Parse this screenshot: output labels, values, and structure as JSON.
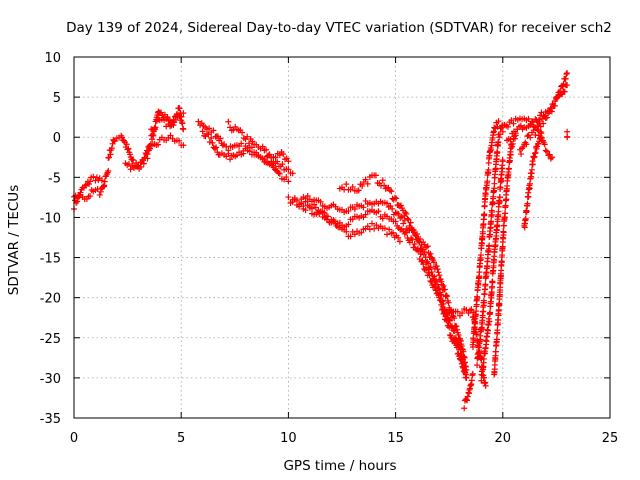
{
  "chart_data": {
    "type": "scatter",
    "title": "Day 139 of 2024, Sidereal Day-to-day VTEC variation (SDTVAR) for receiver sch2",
    "xlabel": "GPS time / hours",
    "ylabel": "SDTVAR / TECUs",
    "xlim": [
      0,
      25
    ],
    "ylim": [
      -35,
      10
    ],
    "xticks": [
      0,
      5,
      10,
      15,
      20,
      25
    ],
    "yticks": [
      10,
      5,
      0,
      -5,
      -10,
      -15,
      -20,
      -25,
      -30,
      -35
    ],
    "xtick_labels": [
      "0",
      "5",
      "10",
      "15",
      "20",
      "25"
    ],
    "ytick_labels": [
      "10",
      "5",
      "0",
      "-5",
      "-10",
      "-15",
      "-20",
      "-25",
      "-30",
      "-35"
    ],
    "grid": true,
    "marker": "+",
    "color": "#ff0000",
    "series": [
      {
        "name": "SDTVAR",
        "traces": [
          [
            [
              0.0,
              -8.5
            ],
            [
              0.2,
              -7.5
            ],
            [
              0.4,
              -6.5
            ],
            [
              0.6,
              -6.0
            ],
            [
              0.8,
              -5.2
            ],
            [
              1.0,
              -5.0
            ],
            [
              1.2,
              -5.5
            ],
            [
              1.4,
              -5.8
            ],
            [
              1.6,
              -4.2
            ]
          ],
          [
            [
              0.0,
              -7.8
            ],
            [
              0.3,
              -7.2
            ],
            [
              0.6,
              -7.5
            ],
            [
              0.9,
              -6.8
            ],
            [
              1.2,
              -6.8
            ],
            [
              1.4,
              -6.0
            ]
          ],
          [
            [
              1.6,
              -2.5
            ],
            [
              1.9,
              -0.2
            ],
            [
              2.2,
              0.3
            ],
            [
              2.5,
              -1.5
            ],
            [
              2.8,
              -3.5
            ],
            [
              3.1,
              -3.2
            ],
            [
              3.4,
              -2.0
            ],
            [
              3.7,
              0.5
            ],
            [
              4.0,
              3.5
            ],
            [
              4.3,
              2.5
            ],
            [
              4.6,
              1.5
            ],
            [
              4.9,
              3.5
            ],
            [
              5.1,
              1.0
            ]
          ],
          [
            [
              2.4,
              -3.0
            ],
            [
              2.8,
              -4.0
            ],
            [
              3.2,
              -3.2
            ],
            [
              3.6,
              -1.5
            ],
            [
              4.0,
              -0.5
            ],
            [
              4.4,
              0.0
            ],
            [
              4.8,
              -0.5
            ],
            [
              5.1,
              -1.0
            ]
          ],
          [
            [
              3.6,
              0.8
            ],
            [
              4.0,
              2.0
            ],
            [
              4.4,
              1.5
            ],
            [
              4.8,
              2.5
            ],
            [
              5.1,
              3.0
            ]
          ],
          [
            [
              5.8,
              2.0
            ],
            [
              6.2,
              1.0
            ],
            [
              6.6,
              0.5
            ],
            [
              7.0,
              -1.0
            ],
            [
              7.4,
              -1.5
            ],
            [
              7.8,
              -1.2
            ],
            [
              8.2,
              -1.5
            ],
            [
              8.6,
              -2.0
            ],
            [
              9.0,
              -2.5
            ],
            [
              9.4,
              -3.0
            ],
            [
              9.8,
              -4.0
            ],
            [
              10.2,
              -4.5
            ]
          ],
          [
            [
              6.0,
              0.8
            ],
            [
              6.4,
              -0.5
            ],
            [
              6.8,
              -2.0
            ],
            [
              7.2,
              -2.5
            ],
            [
              7.6,
              -1.8
            ],
            [
              8.0,
              -1.8
            ],
            [
              8.4,
              -2.2
            ],
            [
              8.8,
              -2.8
            ],
            [
              9.2,
              -3.5
            ],
            [
              9.6,
              -5.0
            ],
            [
              10.0,
              -5.5
            ]
          ],
          [
            [
              7.2,
              1.5
            ],
            [
              7.6,
              0.8
            ],
            [
              8.0,
              0.0
            ],
            [
              8.4,
              -1.0
            ],
            [
              8.8,
              -1.5
            ],
            [
              9.2,
              -2.5
            ],
            [
              9.6,
              -2.0
            ],
            [
              10.0,
              -3.0
            ]
          ],
          [
            [
              10.0,
              -7.8
            ],
            [
              10.4,
              -8.0
            ],
            [
              10.8,
              -8.2
            ],
            [
              11.2,
              -8.8
            ],
            [
              11.6,
              -9.5
            ],
            [
              12.0,
              -10.5
            ],
            [
              12.4,
              -11.5
            ],
            [
              12.8,
              -12.0
            ],
            [
              13.2,
              -11.8
            ],
            [
              13.6,
              -11.5
            ],
            [
              14.0,
              -11.0
            ],
            [
              14.4,
              -11.5
            ],
            [
              14.8,
              -12.0
            ],
            [
              15.2,
              -13.0
            ]
          ],
          [
            [
              10.2,
              -8.0
            ],
            [
              10.6,
              -8.5
            ],
            [
              11.0,
              -9.0
            ],
            [
              11.4,
              -9.5
            ],
            [
              11.8,
              -10.0
            ],
            [
              12.2,
              -10.5
            ],
            [
              12.6,
              -10.8
            ],
            [
              13.0,
              -10.2
            ],
            [
              13.4,
              -10.0
            ],
            [
              13.8,
              -9.5
            ],
            [
              14.2,
              -9.5
            ],
            [
              14.6,
              -10.0
            ],
            [
              15.0,
              -10.5
            ],
            [
              15.5,
              -12.0
            ],
            [
              16.0,
              -14.0
            ],
            [
              16.5,
              -17.0
            ],
            [
              17.0,
              -20.0
            ],
            [
              17.5,
              -24.0
            ],
            [
              18.0,
              -27.5
            ],
            [
              18.3,
              -30.0
            ]
          ],
          [
            [
              10.6,
              -7.5
            ],
            [
              11.0,
              -7.8
            ],
            [
              11.4,
              -8.0
            ],
            [
              11.8,
              -8.5
            ],
            [
              12.2,
              -8.8
            ],
            [
              12.6,
              -9.0
            ],
            [
              13.0,
              -8.6
            ],
            [
              13.4,
              -8.5
            ],
            [
              13.8,
              -8.0
            ],
            [
              14.2,
              -8.0
            ],
            [
              14.6,
              -8.5
            ],
            [
              15.0,
              -9.5
            ],
            [
              15.5,
              -11.0
            ],
            [
              16.0,
              -12.5
            ],
            [
              16.5,
              -14.0
            ],
            [
              17.0,
              -17.0
            ],
            [
              17.5,
              -21.0
            ],
            [
              18.0,
              -25.0
            ],
            [
              18.3,
              -29.0
            ]
          ],
          [
            [
              12.4,
              -6.0
            ],
            [
              12.8,
              -6.2
            ],
            [
              13.2,
              -6.5
            ],
            [
              13.6,
              -5.5
            ],
            [
              14.0,
              -5.0
            ],
            [
              14.4,
              -5.8
            ],
            [
              14.8,
              -7.0
            ],
            [
              15.2,
              -8.5
            ],
            [
              15.6,
              -10.5
            ],
            [
              16.0,
              -12.5
            ],
            [
              16.4,
              -15.0
            ],
            [
              16.8,
              -17.5
            ],
            [
              17.2,
              -20.5
            ],
            [
              17.6,
              -23.5
            ],
            [
              18.0,
              -26.5
            ],
            [
              18.3,
              -30.0
            ]
          ],
          [
            [
              17.2,
              -21.5
            ],
            [
              17.6,
              -22.0
            ],
            [
              18.0,
              -21.8
            ],
            [
              18.4,
              -21.5
            ],
            [
              18.6,
              -22.0
            ],
            [
              18.8,
              -25.0
            ],
            [
              19.0,
              -28.0
            ],
            [
              19.2,
              -31.0
            ]
          ],
          [
            [
              18.2,
              -33.5
            ],
            [
              18.4,
              -32.0
            ],
            [
              18.6,
              -29.5
            ]
          ],
          [
            [
              18.6,
              -26.0
            ],
            [
              18.8,
              -20.0
            ],
            [
              19.0,
              -14.0
            ],
            [
              19.2,
              -7.0
            ],
            [
              19.4,
              -2.0
            ],
            [
              19.6,
              1.0
            ],
            [
              19.8,
              2.0
            ]
          ],
          [
            [
              18.8,
              -28.0
            ],
            [
              19.0,
              -24.0
            ],
            [
              19.2,
              -18.0
            ],
            [
              19.4,
              -12.0
            ],
            [
              19.6,
              -6.0
            ],
            [
              19.8,
              0.0
            ],
            [
              20.0,
              1.5
            ]
          ],
          [
            [
              19.0,
              -30.0
            ],
            [
              19.2,
              -26.0
            ],
            [
              19.4,
              -22.0
            ],
            [
              19.6,
              -15.0
            ],
            [
              19.8,
              -9.0
            ],
            [
              20.0,
              -3.0
            ]
          ],
          [
            [
              19.6,
              -29.5
            ],
            [
              19.8,
              -22.0
            ],
            [
              20.0,
              -13.0
            ],
            [
              20.2,
              -6.0
            ],
            [
              20.4,
              -1.0
            ],
            [
              20.6,
              0.5
            ]
          ],
          [
            [
              20.0,
              1.0
            ],
            [
              20.4,
              2.0
            ],
            [
              20.8,
              2.5
            ],
            [
              21.2,
              2.0
            ],
            [
              21.6,
              1.0
            ],
            [
              22.0,
              2.5
            ],
            [
              22.4,
              4.0
            ],
            [
              22.8,
              6.5
            ],
            [
              23.0,
              8.0
            ]
          ],
          [
            [
              20.2,
              -0.5
            ],
            [
              20.6,
              0.5
            ],
            [
              21.0,
              1.5
            ],
            [
              21.4,
              1.5
            ],
            [
              21.8,
              3.0
            ],
            [
              22.2,
              3.5
            ],
            [
              22.6,
              5.0
            ],
            [
              23.0,
              6.5
            ]
          ],
          [
            [
              21.0,
              -11.5
            ],
            [
              21.2,
              -7.0
            ],
            [
              21.4,
              -3.0
            ],
            [
              21.6,
              -1.0
            ],
            [
              21.8,
              0.5
            ]
          ],
          [
            [
              20.8,
              -2.0
            ],
            [
              21.2,
              0.0
            ],
            [
              21.6,
              0.8
            ],
            [
              22.0,
              -1.5
            ],
            [
              22.3,
              -2.5
            ]
          ],
          [
            [
              23.0,
              0.5
            ],
            [
              23.0,
              0.0
            ]
          ]
        ]
      }
    ]
  }
}
